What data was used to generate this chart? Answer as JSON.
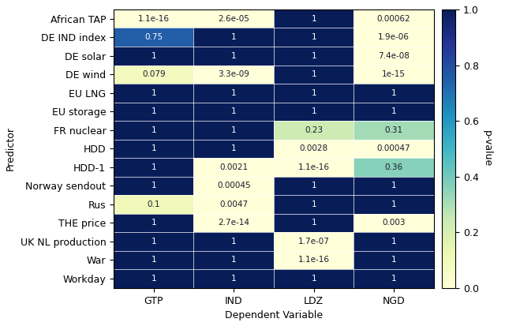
{
  "rows": [
    "African TAP",
    "DE IND index",
    "DE solar",
    "DE wind",
    "EU LNG",
    "EU storage",
    "FR nuclear",
    "HDD",
    "HDD-1",
    "Norway sendout",
    "Rus",
    "THE price",
    "UK NL production",
    "War",
    "Workday"
  ],
  "cols": [
    "GTP",
    "IND",
    "LDZ",
    "NGD"
  ],
  "values": [
    [
      1.1e-16,
      2.6e-05,
      1,
      0.00062
    ],
    [
      0.75,
      1,
      1,
      1.9e-06
    ],
    [
      1,
      1,
      1,
      7.4e-08
    ],
    [
      0.079,
      3.3e-09,
      1,
      1e-15
    ],
    [
      1,
      1,
      1,
      1
    ],
    [
      1,
      1,
      1,
      1
    ],
    [
      1,
      1,
      0.23,
      0.31
    ],
    [
      1,
      1,
      0.0028,
      0.00047
    ],
    [
      1,
      0.0021,
      1.1e-16,
      0.36
    ],
    [
      1,
      0.00045,
      1,
      1
    ],
    [
      0.1,
      0.0047,
      1,
      1
    ],
    [
      1,
      2.7e-14,
      1,
      0.003
    ],
    [
      1,
      1,
      1.7e-07,
      1
    ],
    [
      1,
      1,
      1.1e-16,
      1
    ],
    [
      1,
      1,
      1,
      1
    ]
  ],
  "annotations": [
    [
      "1.1e-16",
      "2.6e-05",
      "1",
      "0.00062"
    ],
    [
      "0.75",
      "1",
      "1",
      "1.9e-06"
    ],
    [
      "1",
      "1",
      "1",
      "7.4e-08"
    ],
    [
      "0.079",
      "3.3e-09",
      "1",
      "1e-15"
    ],
    [
      "1",
      "1",
      "1",
      "1"
    ],
    [
      "1",
      "1",
      "1",
      "1"
    ],
    [
      "1",
      "1",
      "0.23",
      "0.31"
    ],
    [
      "1",
      "1",
      "0.0028",
      "0.00047"
    ],
    [
      "1",
      "0.0021",
      "1.1e-16",
      "0.36"
    ],
    [
      "1",
      "0.00045",
      "1",
      "1"
    ],
    [
      "0.1",
      "0.0047",
      "1",
      "1"
    ],
    [
      "1",
      "2.7e-14",
      "1",
      "0.003"
    ],
    [
      "1",
      "1",
      "1.7e-07",
      "1"
    ],
    [
      "1",
      "1",
      "1.1e-16",
      "1"
    ],
    [
      "1",
      "1",
      "1",
      "1"
    ]
  ],
  "xlabel": "Dependent Variable",
  "ylabel": "Predictor",
  "colorbar_label": "p-value",
  "vmin": 0.0,
  "vmax": 1.0,
  "cmap": "YlGnBu",
  "figsize": [
    6.4,
    4.13
  ],
  "dpi": 100,
  "font_size_annotations": 7.5,
  "font_size_labels": 9,
  "colorbar_ticks": [
    0.0,
    0.2,
    0.4,
    0.6,
    0.8,
    1.0
  ],
  "text_light_threshold": 0.45,
  "text_color_dark": "white",
  "text_color_light": "#1a1a2e"
}
